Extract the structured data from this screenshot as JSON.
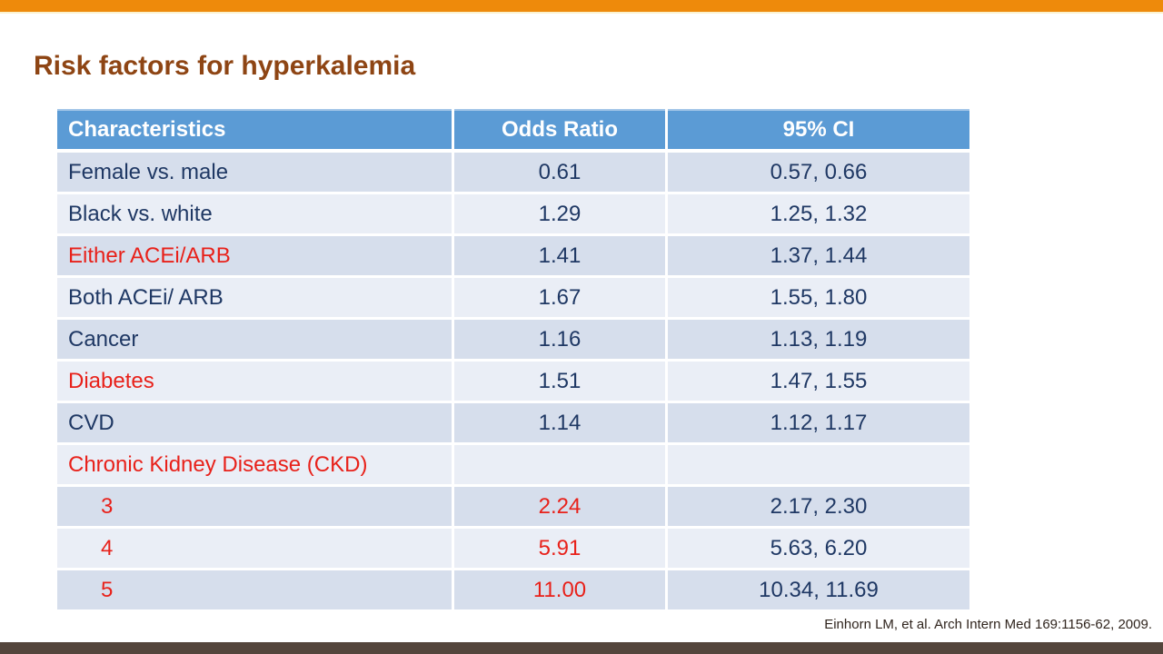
{
  "slide": {
    "title": "Risk factors for hyperkalemia",
    "citation": "Einhorn LM, et al. Arch Intern Med 169:1156-62, 2009."
  },
  "table": {
    "columns": [
      {
        "label": "Characteristics",
        "align": "left"
      },
      {
        "label": "Odds Ratio",
        "align": "center"
      },
      {
        "label": "95% CI",
        "align": "center"
      }
    ],
    "rows": [
      {
        "characteristic": "Female vs. male",
        "odds_ratio": "0.61",
        "ci": "0.57, 0.66",
        "label_red": false,
        "or_red": false,
        "indent": false
      },
      {
        "characteristic": "Black vs. white",
        "odds_ratio": "1.29",
        "ci": "1.25, 1.32",
        "label_red": false,
        "or_red": false,
        "indent": false
      },
      {
        "characteristic": "Either ACEi/ARB",
        "odds_ratio": "1.41",
        "ci": "1.37, 1.44",
        "label_red": true,
        "or_red": false,
        "indent": false
      },
      {
        "characteristic": "Both ACEi/ ARB",
        "odds_ratio": "1.67",
        "ci": "1.55, 1.80",
        "label_red": false,
        "or_red": false,
        "indent": false
      },
      {
        "characteristic": "Cancer",
        "odds_ratio": "1.16",
        "ci": "1.13, 1.19",
        "label_red": false,
        "or_red": false,
        "indent": false
      },
      {
        "characteristic": "Diabetes",
        "odds_ratio": "1.51",
        "ci": "1.47, 1.55",
        "label_red": true,
        "or_red": false,
        "indent": false
      },
      {
        "characteristic": "CVD",
        "odds_ratio": "1.14",
        "ci": "1.12, 1.17",
        "label_red": false,
        "or_red": false,
        "indent": false
      },
      {
        "characteristic": "Chronic Kidney Disease (CKD)",
        "odds_ratio": "",
        "ci": "",
        "label_red": true,
        "or_red": false,
        "indent": false
      },
      {
        "characteristic": "3",
        "odds_ratio": "2.24",
        "ci": "2.17, 2.30",
        "label_red": true,
        "or_red": true,
        "indent": true
      },
      {
        "characteristic": "4",
        "odds_ratio": "5.91",
        "ci": "5.63, 6.20",
        "label_red": true,
        "or_red": true,
        "indent": true
      },
      {
        "characteristic": "5",
        "odds_ratio": "11.00",
        "ci": "10.34, 11.69",
        "label_red": true,
        "or_red": true,
        "indent": true
      }
    ]
  },
  "colors": {
    "accent-orange": "#EE8A0B",
    "accent-cream": "#FBF2CF",
    "title-brown": "#8E4514",
    "header-blue": "#5B9BD5",
    "header-top-line": "#A3C6E8",
    "row-dark": "#D6DEEC",
    "row-light": "#EAEEF6",
    "text-navy": "#1F3864",
    "text-red": "#E8211A",
    "citation-text": "#30251E",
    "bottom-bar": "#54453C"
  }
}
